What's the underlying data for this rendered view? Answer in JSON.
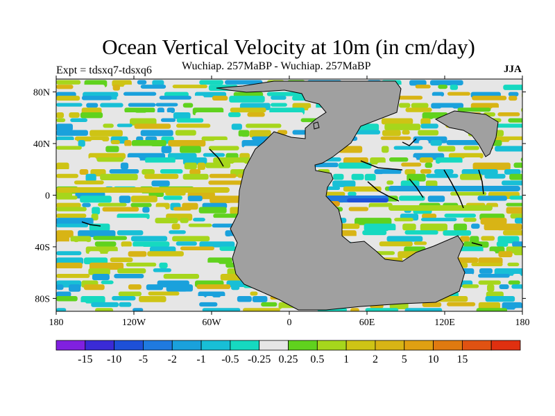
{
  "chart_data": {
    "type": "heatmap",
    "title": "Ocean Vertical Velocity at 10m (in cm/day)",
    "subtitle": "Wuchiap. 257MaBP - Wuchiap. 257MaBP",
    "left_label": "Expt = tdsxq7-tdsxq6",
    "right_label": "JJA",
    "x_ticks": [
      "180",
      "120W",
      "60W",
      "0",
      "60E",
      "120E",
      "180"
    ],
    "x_tick_values": [
      -180,
      -120,
      -60,
      0,
      60,
      120,
      180
    ],
    "y_ticks": [
      "80N",
      "40N",
      "0",
      "40S",
      "80S"
    ],
    "y_tick_values": [
      80,
      40,
      0,
      -40,
      -80
    ],
    "xlim": [
      -180,
      180
    ],
    "ylim": [
      -90,
      90
    ],
    "colorbar": {
      "colors": [
        "#8020e0",
        "#3a2bd6",
        "#1e50d8",
        "#1f7ae0",
        "#1aa1dc",
        "#18bfd6",
        "#16d9c0",
        "#e6e6e6",
        "#60d21e",
        "#a6d61c",
        "#cec415",
        "#d8b415",
        "#e0a012",
        "#e07a10",
        "#e05212",
        "#e03010"
      ],
      "labels": [
        "-15",
        "-10",
        "-5",
        "-2",
        "-1",
        "-0.5",
        "-0.25",
        "0.25",
        "0.5",
        "1",
        "2",
        "5",
        "10",
        "15"
      ]
    },
    "land_color": "#a0a0a0",
    "ocean_neutral_color": "#e6e6e6"
  }
}
